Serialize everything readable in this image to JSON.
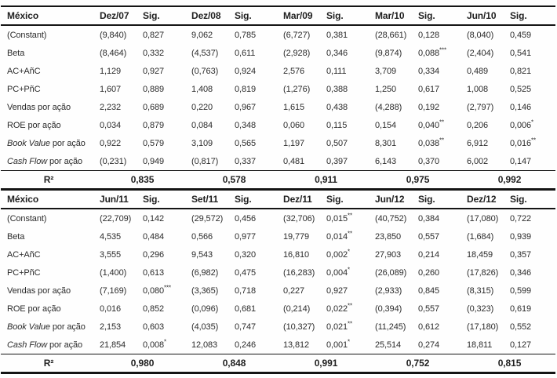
{
  "table": {
    "sections": [
      {
        "header": {
          "label": "México",
          "columns": [
            "Dez/07",
            "Sig.",
            "Dez/08",
            "Sig.",
            "Mar/09",
            "Sig.",
            "Mar/10",
            "Sig.",
            "Jun/10",
            "Sig."
          ]
        },
        "rows": [
          {
            "label_italic": "",
            "label": "(Constant)",
            "values": [
              "(9,840)",
              "0,827",
              "9,062",
              "0,785",
              "(6,727)",
              "0,381",
              "(28,661)",
              "0,128",
              "(8,040)",
              "0,459"
            ]
          },
          {
            "label_italic": "",
            "label": "Beta",
            "values": [
              "(8,464)",
              "0,332",
              "(4,537)",
              "0,611",
              "(2,928)",
              "0,346",
              "(9,874)",
              "0,088***",
              "(2,404)",
              "0,541"
            ]
          },
          {
            "label_italic": "",
            "label": "AC+AñC",
            "values": [
              "1,129",
              "0,927",
              "(0,763)",
              "0,924",
              "2,576",
              "0,111",
              "3,709",
              "0,334",
              "0,489",
              "0,821"
            ]
          },
          {
            "label_italic": "",
            "label": "PC+PñC",
            "values": [
              "1,607",
              "0,889",
              "1,408",
              "0,819",
              "(1,276)",
              "0,388",
              "1,250",
              "0,617",
              "1,008",
              "0,525"
            ]
          },
          {
            "label_italic": "",
            "label": "Vendas por ação",
            "values": [
              "2,232",
              "0,689",
              "0,220",
              "0,967",
              "1,615",
              "0,438",
              "(4,288)",
              "0,192",
              "(2,797)",
              "0,146"
            ]
          },
          {
            "label_italic": "",
            "label": "ROE por ação",
            "values": [
              "0,034",
              "0,879",
              "0,084",
              "0,348",
              "0,060",
              "0,115",
              "0,154",
              "0,040**",
              "0,206",
              "0,006*"
            ]
          },
          {
            "label_italic": "Book Value",
            "label": " por ação",
            "values": [
              "0,922",
              "0,579",
              "3,109",
              "0,565",
              "1,197",
              "0,507",
              "8,301",
              "0,038**",
              "6,912",
              "0,016**"
            ]
          },
          {
            "label_italic": "Cash Flow",
            "label": " por ação",
            "values": [
              "(0,231)",
              "0,949",
              "(0,817)",
              "0,337",
              "0,481",
              "0,397",
              "6,143",
              "0,370",
              "6,002",
              "0,147"
            ]
          }
        ],
        "r2": {
          "label": "R²",
          "values": [
            "0,835",
            "0,578",
            "0,911",
            "0,975",
            "0,992"
          ]
        }
      },
      {
        "header": {
          "label": "México",
          "columns": [
            "Jun/11",
            "Sig.",
            "Set/11",
            "Sig.",
            "Dez/11",
            "Sig.",
            "Jun/12",
            "Sig.",
            "Dez/12",
            "Sig."
          ]
        },
        "rows": [
          {
            "label_italic": "",
            "label": "(Constant)",
            "values": [
              "(22,709)",
              "0,142",
              "(29,572)",
              "0,456",
              "(32,706)",
              "0,015**",
              "(40,752)",
              "0,384",
              "(17,080)",
              "0,722"
            ]
          },
          {
            "label_italic": "",
            "label": "Beta",
            "values": [
              "4,535",
              "0,484",
              "0,566",
              "0,977",
              "19,779",
              "0,014**",
              "23,850",
              "0,557",
              "(1,684)",
              "0,939"
            ]
          },
          {
            "label_italic": "",
            "label": "AC+AñC",
            "values": [
              "3,555",
              "0,296",
              "9,543",
              "0,320",
              "16,810",
              "0,002*",
              "27,903",
              "0,214",
              "18,459",
              "0,357"
            ]
          },
          {
            "label_italic": "",
            "label": "PC+PñC",
            "values": [
              "(1,400)",
              "0,613",
              "(6,982)",
              "0,475",
              "(16,283)",
              "0,004*",
              "(26,089)",
              "0,260",
              "(17,826)",
              "0,346"
            ]
          },
          {
            "label_italic": "",
            "label": "Vendas por ação",
            "values": [
              "(7,169)",
              "0,080***",
              "(3,365)",
              "0,718",
              "0,227",
              "0,927",
              "(2,933)",
              "0,845",
              "(8,315)",
              "0,599"
            ]
          },
          {
            "label_italic": "",
            "label": "ROE por ação",
            "values": [
              "0,016",
              "0,852",
              "(0,096)",
              "0,681",
              "(0,214)",
              "0,022**",
              "(0,394)",
              "0,557",
              "(0,323)",
              "0,619"
            ]
          },
          {
            "label_italic": "Book Value",
            "label": " por ação",
            "values": [
              "2,153",
              "0,603",
              "(4,035)",
              "0,747",
              "(10,327)",
              "0,021**",
              "(11,245)",
              "0,612",
              "(17,180)",
              "0,552"
            ]
          },
          {
            "label_italic": "Cash Flow",
            "label": " por ação",
            "values": [
              "21,854",
              "0,008*",
              "12,083",
              "0,246",
              "13,812",
              "0,001*",
              "25,514",
              "0,274",
              "18,811",
              "0,127"
            ]
          }
        ],
        "r2": {
          "label": "R²",
          "values": [
            "0,980",
            "0,848",
            "0,991",
            "0,752",
            "0,815"
          ]
        }
      }
    ]
  }
}
